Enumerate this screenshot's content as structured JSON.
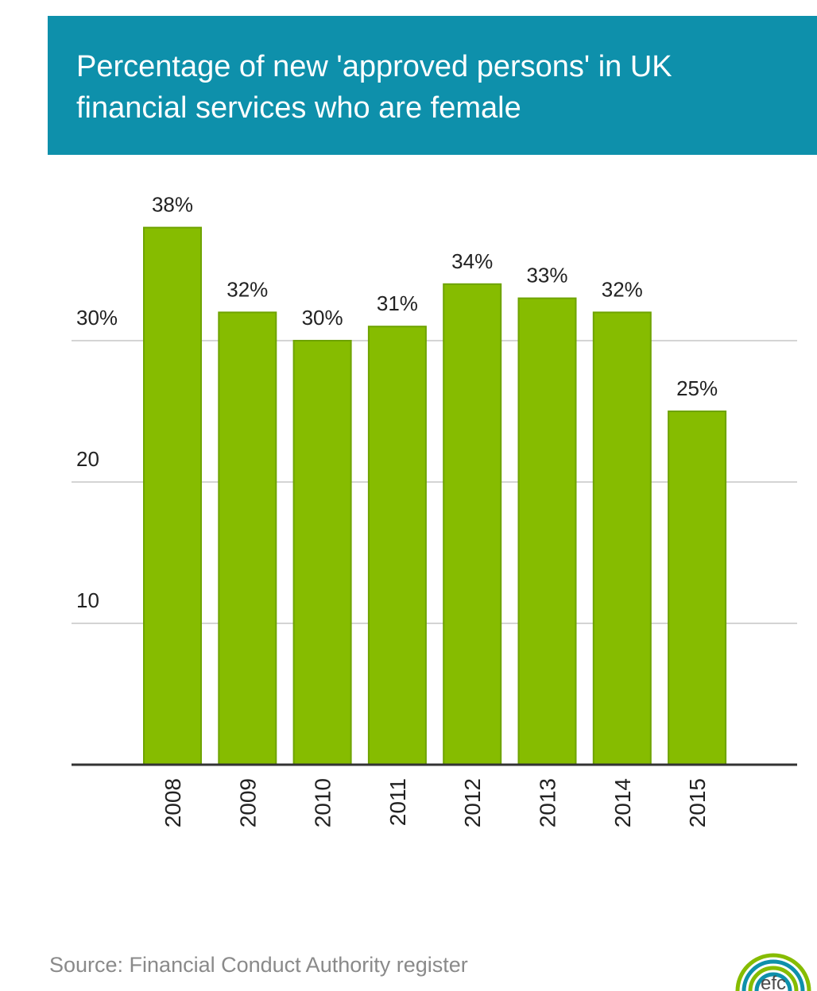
{
  "header": {
    "title_line1": "Percentage of new 'approved persons' in UK",
    "title_line2": "financial services who are female"
  },
  "footer": {
    "source": "Source: Financial Conduct Authority register",
    "logo_text": "efc"
  },
  "colors": {
    "header_bg": "#0e90ab",
    "bar_fill": "#86bc00",
    "bar_stroke": "#6ea300",
    "gridline": "#d4d4d4",
    "axis": "#333333",
    "text": "#222222",
    "source_text": "#8a8a8a"
  },
  "chart_data": {
    "type": "bar",
    "title": "Percentage of new 'approved persons' in UK financial services who are female",
    "categories": [
      "2008",
      "2009",
      "2010",
      "2011",
      "2012",
      "2013",
      "2014",
      "2015"
    ],
    "values": [
      38,
      32,
      30,
      31,
      34,
      33,
      32,
      25
    ],
    "value_labels": [
      "38%",
      "32%",
      "30%",
      "31%",
      "34%",
      "33%",
      "32%",
      "25%"
    ],
    "y_ticks": [
      10,
      20,
      30
    ],
    "y_tick_labels": [
      "10",
      "20",
      "30%"
    ],
    "ylim": [
      0,
      38
    ],
    "grid": true,
    "xlabel": "",
    "ylabel": ""
  }
}
